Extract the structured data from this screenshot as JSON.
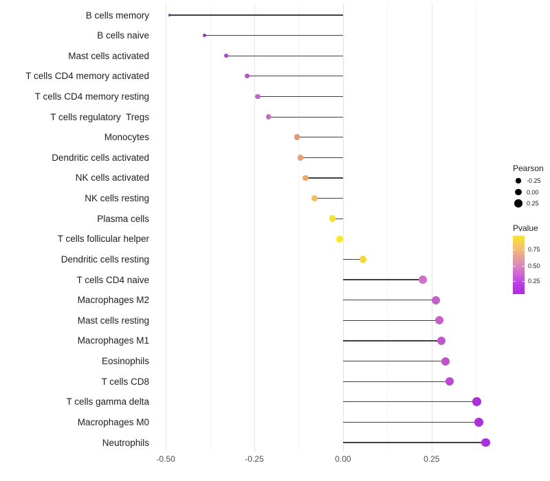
{
  "chart_data": {
    "type": "scatter",
    "subtype": "lollipop",
    "title": "",
    "xlabel": "",
    "ylabel": "",
    "grid": "vertical-only",
    "xlim": [
      -0.537,
      0.454
    ],
    "x_major_ticks": [
      -0.5,
      -0.25,
      0,
      0.25
    ],
    "x_tick_labels": [
      "-0.50",
      "-0.25",
      "0.00",
      "0.25"
    ],
    "x_minor_ticks": [
      -0.375,
      -0.125,
      0.125,
      0.375
    ],
    "baseline_x": 0,
    "categories": [
      "B cells memory",
      "B cells naive",
      "Mast cells activated",
      "T cells CD4 memory activated",
      "T cells CD4 memory resting",
      "T cells regulatory  Tregs",
      "Monocytes",
      "Dendritic cells activated",
      "NK cells activated",
      "NK cells resting",
      "Plasma cells",
      "T cells follicular helper",
      "Dendritic cells resting",
      "T cells CD4 naive",
      "Macrophages M2",
      "Mast cells resting",
      "Macrophages M1",
      "Eosinophils",
      "T cells CD8",
      "T cells gamma delta",
      "Macrophages M0",
      "Neutrophils"
    ],
    "points": [
      {
        "label": "B cells memory",
        "pearson": -0.49,
        "pvalue_est": 0.02,
        "color": "#7d2cc0"
      },
      {
        "label": "B cells naive",
        "pearson": -0.39,
        "pvalue_est": 0.08,
        "color": "#9138c8"
      },
      {
        "label": "Mast cells activated",
        "pearson": -0.33,
        "pvalue_est": 0.12,
        "color": "#a845cb"
      },
      {
        "label": "T cells CD4 memory activated",
        "pearson": -0.27,
        "pvalue_est": 0.18,
        "color": "#bc55cb"
      },
      {
        "label": "T cells CD4 memory resting",
        "pearson": -0.24,
        "pvalue_est": 0.22,
        "color": "#c263cc"
      },
      {
        "label": "T cells regulatory  Tregs",
        "pearson": -0.21,
        "pvalue_est": 0.26,
        "color": "#c76bc9"
      },
      {
        "label": "Monocytes",
        "pearson": -0.13,
        "pvalue_est": 0.55,
        "color": "#e59a76"
      },
      {
        "label": "Dendritic cells activated",
        "pearson": -0.12,
        "pvalue_est": 0.58,
        "color": "#e8a272"
      },
      {
        "label": "NK cells activated",
        "pearson": -0.105,
        "pvalue_est": 0.62,
        "color": "#eca967"
      },
      {
        "label": "NK cells resting",
        "pearson": -0.08,
        "pvalue_est": 0.72,
        "color": "#f0bd5e"
      },
      {
        "label": "Plasma cells",
        "pearson": -0.03,
        "pvalue_est": 0.92,
        "color": "#f5e32a"
      },
      {
        "label": "T cells follicular helper",
        "pearson": -0.01,
        "pvalue_est": 0.95,
        "color": "#f8e824"
      },
      {
        "label": "Dendritic cells resting",
        "pearson": 0.057,
        "pvalue_est": 0.85,
        "color": "#f2d838"
      },
      {
        "label": "T cells CD4 naive",
        "pearson": 0.225,
        "pvalue_est": 0.3,
        "color": "#ce72c4"
      },
      {
        "label": "Macrophages M2",
        "pearson": 0.262,
        "pvalue_est": 0.24,
        "color": "#c55fc9"
      },
      {
        "label": "Mast cells resting",
        "pearson": 0.272,
        "pvalue_est": 0.24,
        "color": "#c55fc9"
      },
      {
        "label": "Macrophages M1",
        "pearson": 0.278,
        "pvalue_est": 0.22,
        "color": "#c157cb"
      },
      {
        "label": "Eosinophils",
        "pearson": 0.29,
        "pvalue_est": 0.2,
        "color": "#c050cc"
      },
      {
        "label": "T cells CD8",
        "pearson": 0.3,
        "pvalue_est": 0.16,
        "color": "#bb49cf"
      },
      {
        "label": "T cells gamma delta",
        "pearson": 0.377,
        "pvalue_est": 0.08,
        "color": "#ab32d9"
      },
      {
        "label": "Macrophages M0",
        "pearson": 0.383,
        "pvalue_est": 0.08,
        "color": "#ab30da"
      },
      {
        "label": "Neutrophils",
        "pearson": 0.403,
        "pvalue_est": 0.07,
        "color": "#a82ede"
      }
    ],
    "legend_position": "right"
  },
  "legend": {
    "size": {
      "title": "Pearson",
      "entries": [
        {
          "label": "-0.25",
          "value": -0.25
        },
        {
          "label": "0.00",
          "value": 0.0
        },
        {
          "label": "0.25",
          "value": 0.25
        }
      ],
      "dot_color": "#000000"
    },
    "color": {
      "title": "Pvalue",
      "tick_labels": [
        "0.75",
        "0.50",
        "0.25"
      ],
      "gradient_stops": [
        "#f9e721",
        "#f4c566",
        "#eaa68f",
        "#dd8ab9",
        "#cc64d4",
        "#b83ce0",
        "#ad2de4"
      ]
    }
  },
  "colors": {
    "background": "#ffffff",
    "stick": "#3e3e3e",
    "grid_major": "#e4e4e4",
    "grid_minor": "#f4f4f4",
    "axis_text": "#4d4d4d",
    "category_text": "#202020"
  }
}
